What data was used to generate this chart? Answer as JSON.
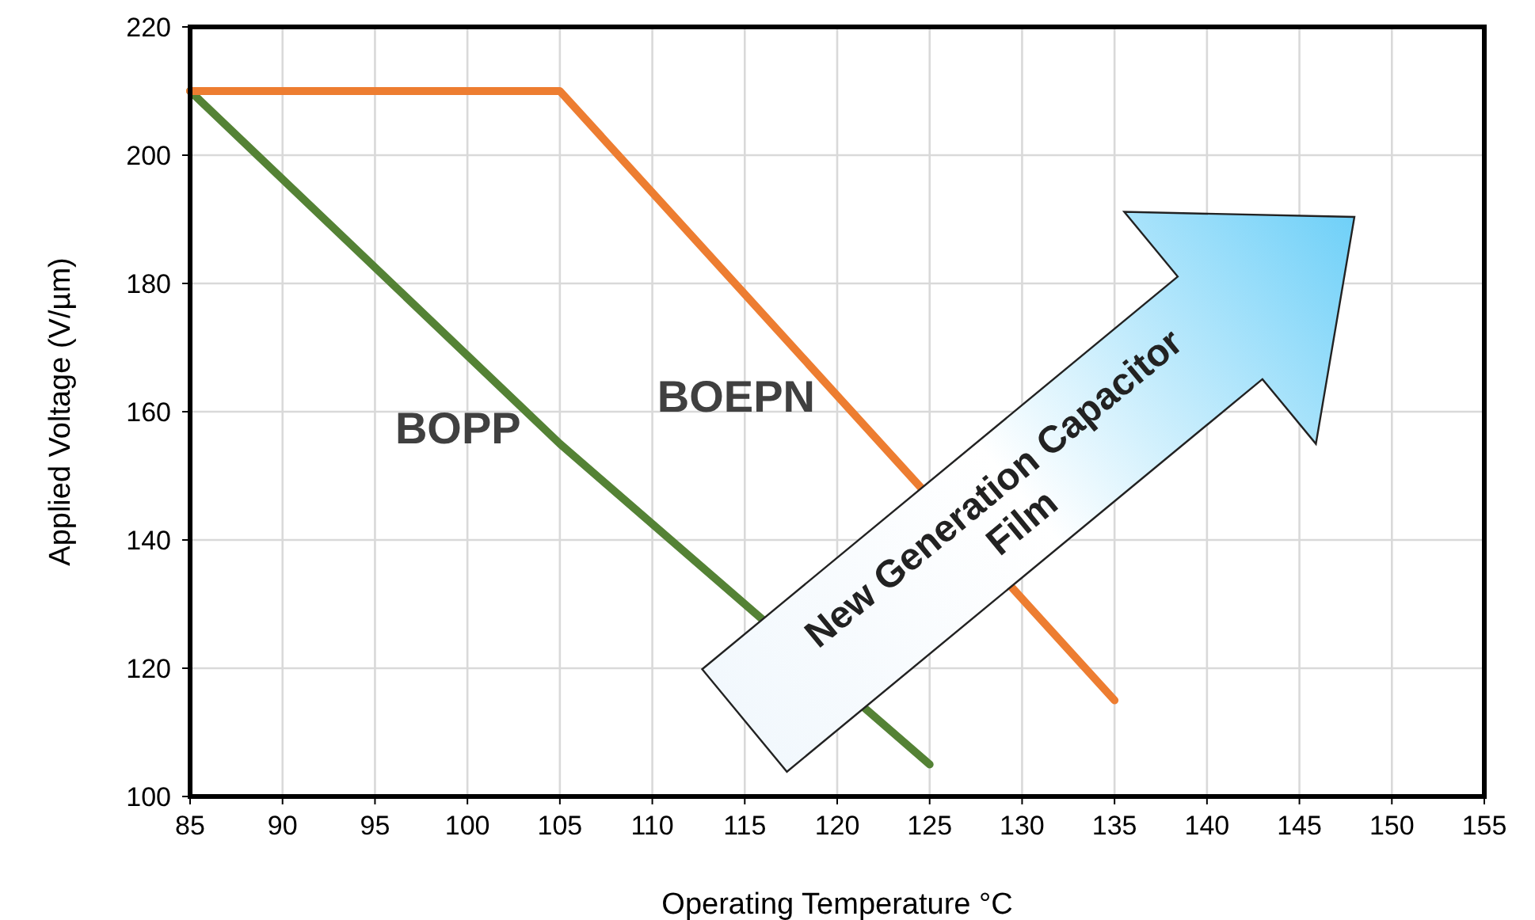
{
  "chart_data": {
    "type": "line",
    "xlabel": "Operating Temperature °C",
    "ylabel": "Applied Voltage (V/µm)",
    "xlim": [
      85,
      155
    ],
    "xticks": [
      85,
      90,
      95,
      100,
      105,
      110,
      115,
      120,
      125,
      130,
      135,
      140,
      145,
      150,
      155
    ],
    "ylim": [
      100,
      220
    ],
    "yticks": [
      100,
      120,
      140,
      160,
      180,
      200,
      220
    ],
    "grid": true,
    "line_style": "solid",
    "marker": "none",
    "series": [
      {
        "name": "BOPP",
        "color": "#548235",
        "x": [
          85,
          105,
          125
        ],
        "values": [
          210,
          155,
          105
        ]
      },
      {
        "name": "BOEPN",
        "color": "#ed7d31",
        "x": [
          85,
          105,
          135
        ],
        "values": [
          210,
          210,
          115
        ]
      }
    ],
    "annotations": [
      "New Generation Capacitor Film"
    ]
  }
}
